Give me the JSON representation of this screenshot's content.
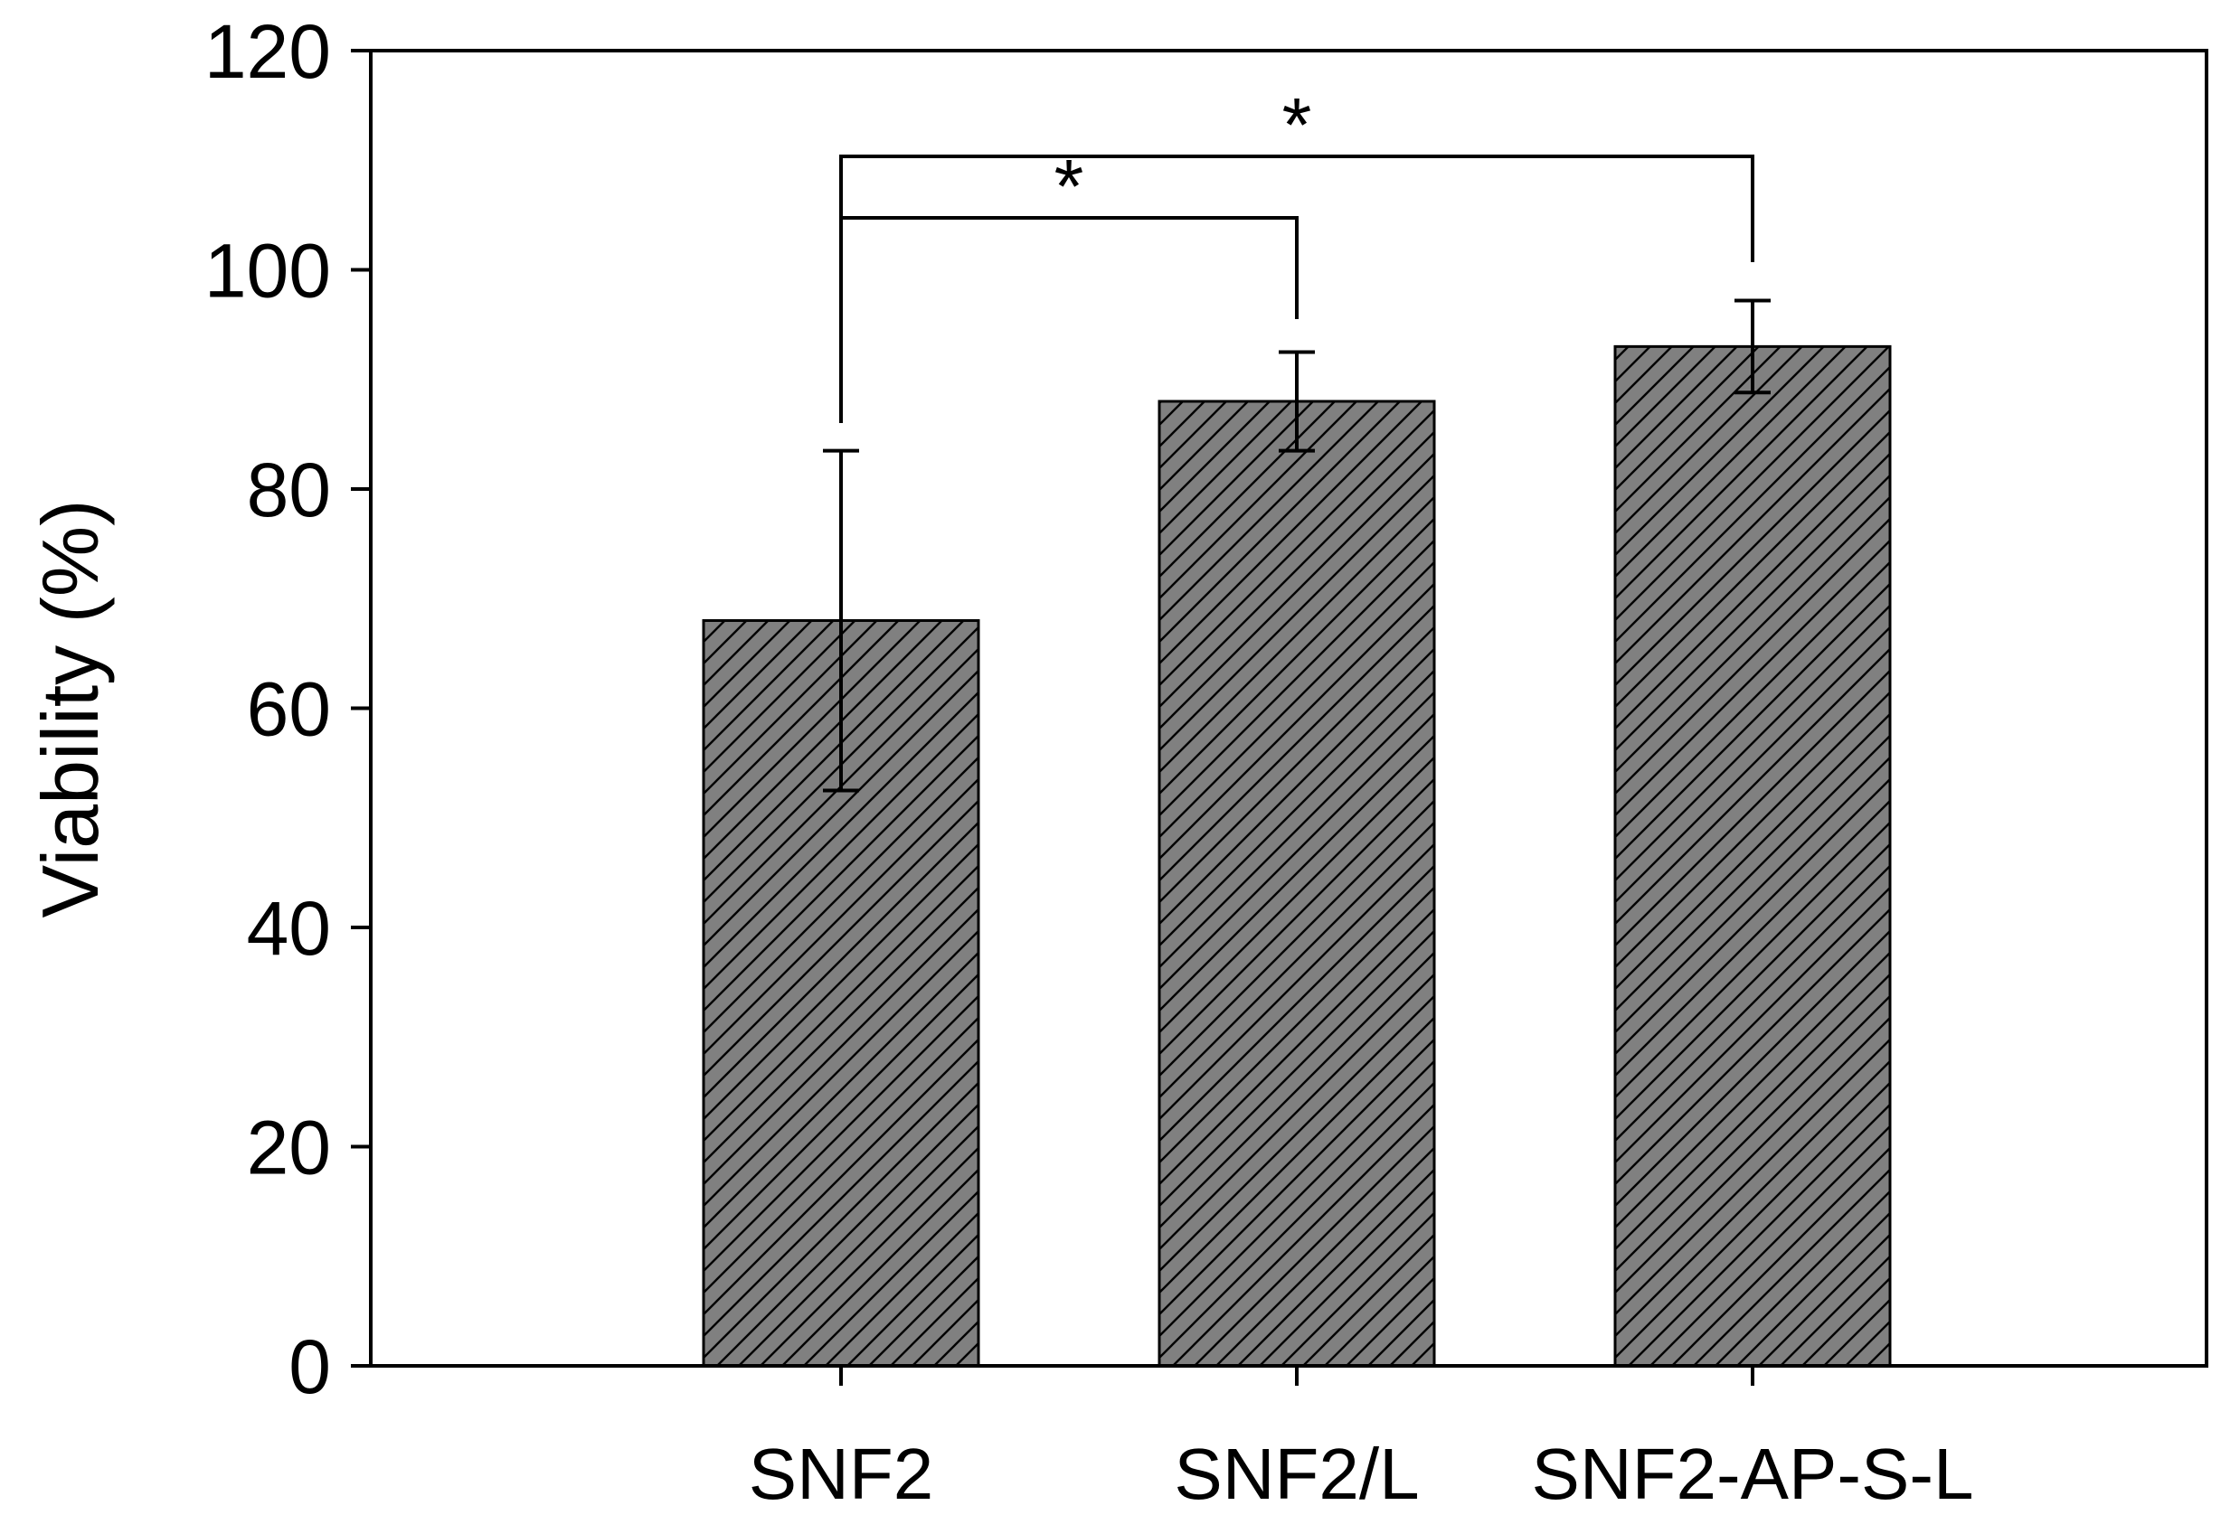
{
  "chart_data": {
    "type": "bar",
    "categories": [
      "SNF2",
      "SNF2/L",
      "SNF2-AP-S-L"
    ],
    "series": [
      {
        "values": [
          68,
          88,
          93
        ],
        "error": [
          15.5,
          4.5,
          4.2
        ]
      }
    ],
    "ylabel": "Viability (%)",
    "xlabel": "",
    "title": "",
    "ylim": [
      0,
      120
    ],
    "yticks": [
      0,
      20,
      40,
      60,
      80,
      100,
      120
    ],
    "grid": false,
    "legend": "none",
    "bar_fill": "#808080",
    "bar_hatch": "diagonal",
    "significance": [
      {
        "from": "SNF2",
        "to": "SNF2/L",
        "label": "*"
      },
      {
        "from": "SNF2",
        "to": "SNF2-AP-S-L",
        "label": "*"
      }
    ]
  }
}
